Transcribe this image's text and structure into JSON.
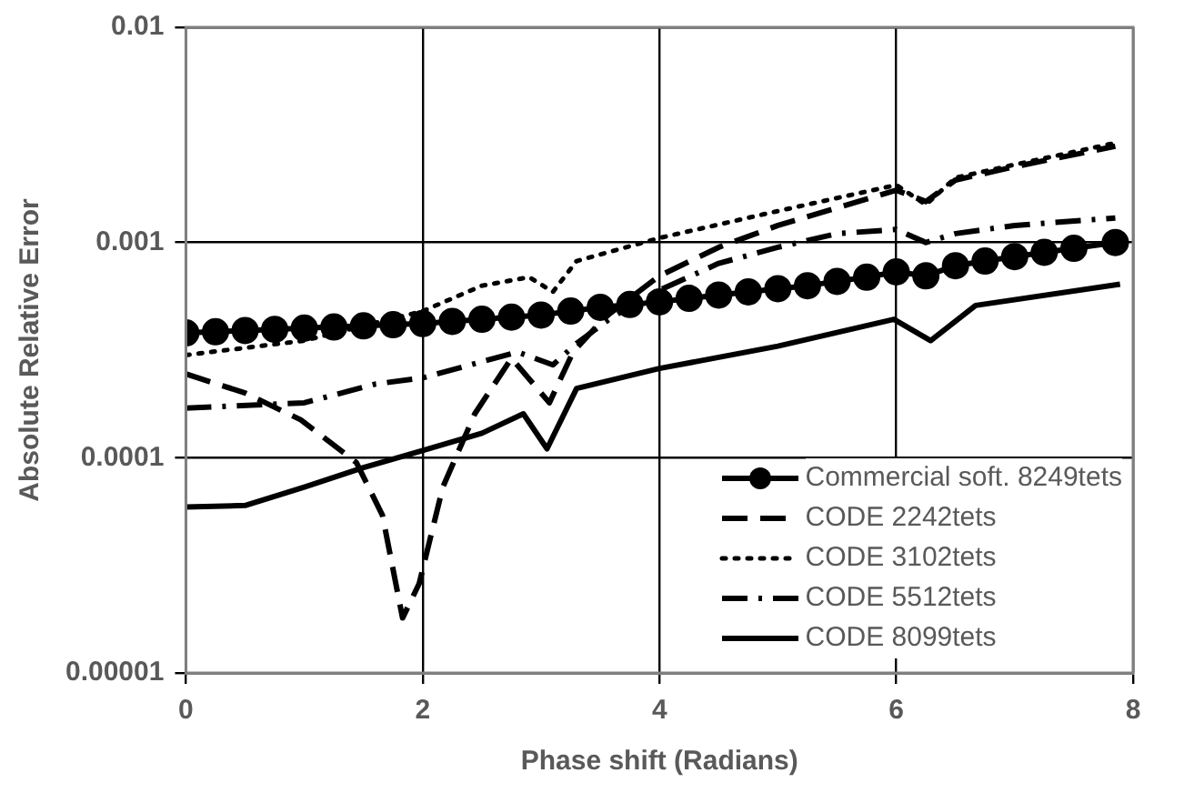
{
  "chart_data": {
    "type": "line",
    "xlabel": "Phase shift (Radians)",
    "ylabel": "Absolute Relative Error",
    "log": "y",
    "grid": true,
    "legend": "bottom right",
    "xlim": [
      0,
      8
    ],
    "xticks": [
      0,
      2,
      4,
      6,
      8
    ],
    "ylim": [
      1e-05,
      0.01
    ],
    "yticks": [
      {
        "value": 1e-05,
        "label": "0.00001"
      },
      0.0001,
      0.001,
      0.01
    ],
    "series": [
      {
        "name": "Commercial soft. 8249tets",
        "color": "#000000",
        "marker": "circle",
        "line_style": "solid",
        "x": [
          0,
          0.25,
          0.5,
          0.75,
          1,
          1.25,
          1.5,
          1.75,
          2,
          2.25,
          2.5,
          2.75,
          3,
          3.25,
          3.5,
          3.75,
          4,
          4.25,
          4.5,
          4.75,
          5,
          5.25,
          5.5,
          5.75,
          6,
          6.25,
          6.5,
          6.75,
          7,
          7.25,
          7.5,
          7.85
        ],
        "values": [
          0.00038,
          0.000385,
          0.00039,
          0.000395,
          0.0004,
          0.000405,
          0.00041,
          0.000415,
          0.00042,
          0.00043,
          0.00044,
          0.00045,
          0.00046,
          0.00048,
          0.0005,
          0.000515,
          0.00053,
          0.00055,
          0.00057,
          0.00059,
          0.00061,
          0.00063,
          0.00066,
          0.00069,
          0.00073,
          0.0007,
          0.00078,
          0.00082,
          0.00086,
          0.0009,
          0.00094,
          0.001
        ]
      },
      {
        "name": "CODE 2242tets",
        "color": "#000000",
        "marker": "none",
        "line_style": "dashed",
        "x": [
          0,
          0.5,
          0.97,
          1.44,
          1.66,
          1.83,
          1.97,
          2.17,
          2.44,
          2.75,
          3.07,
          3.27,
          3.54,
          4,
          4.5,
          5,
          5.5,
          6,
          6.25,
          6.5,
          7,
          7.85
        ],
        "values": [
          0.000245,
          0.0002,
          0.00015,
          9.5e-05,
          5.4e-05,
          1.8e-05,
          2.6e-05,
          7.3e-05,
          0.00016,
          0.00029,
          0.00018,
          0.00031,
          0.00045,
          0.0007,
          0.00095,
          0.0012,
          0.00145,
          0.00175,
          0.00155,
          0.00195,
          0.00225,
          0.0028
        ]
      },
      {
        "name": "CODE 3102tets",
        "color": "#000000",
        "marker": "none",
        "line_style": "dotted",
        "x": [
          0,
          1,
          2,
          2.5,
          2.9,
          3.1,
          3.3,
          4,
          5,
          6,
          6.25,
          6.5,
          7,
          7.85
        ],
        "values": [
          0.0003,
          0.00035,
          0.00048,
          0.00063,
          0.00069,
          0.00059,
          0.00082,
          0.00105,
          0.0014,
          0.00185,
          0.0015,
          0.002,
          0.0023,
          0.0029
        ]
      },
      {
        "name": "CODE 5512tets",
        "color": "#000000",
        "marker": "none",
        "line_style": "dashdot",
        "x": [
          0,
          1,
          1.6,
          2,
          2.4,
          2.8,
          3.1,
          3.3,
          3.6,
          4,
          4.5,
          5,
          5.5,
          6,
          6.25,
          6.5,
          7,
          7.85
        ],
        "values": [
          0.00017,
          0.00018,
          0.00022,
          0.000235,
          0.00027,
          0.00031,
          0.00027,
          0.00034,
          0.00045,
          0.0006,
          0.0008,
          0.00095,
          0.0011,
          0.00115,
          0.001,
          0.0011,
          0.0012,
          0.0013
        ]
      },
      {
        "name": "CODE 8099tets",
        "color": "#000000",
        "marker": "none",
        "line_style": "solid",
        "x": [
          0,
          0.5,
          1,
          1.5,
          2,
          2.5,
          2.85,
          3.05,
          3.3,
          4,
          5,
          5.98,
          6.29,
          6.67,
          7.89
        ],
        "values": [
          5.9e-05,
          6e-05,
          7.3e-05,
          9e-05,
          0.000108,
          0.00013,
          0.00016,
          0.00011,
          0.00021,
          0.00026,
          0.00033,
          0.00044,
          0.00035,
          0.00051,
          0.00064
        ]
      }
    ]
  }
}
